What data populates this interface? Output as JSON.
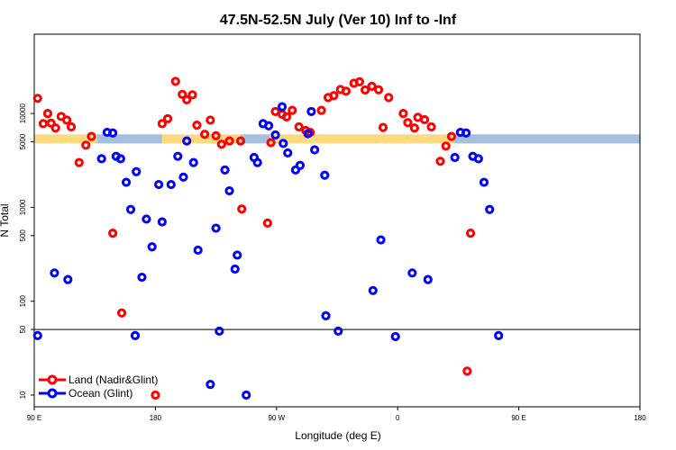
{
  "chart_data": {
    "type": "scatter",
    "title": "47.5N-52.5N July (Ver 10)   Inf to -Inf",
    "xlabel": "Longitude (deg E)",
    "ylabel": "N Total",
    "y_scale": "log",
    "xlim": [
      -90,
      180
    ],
    "x_tick_positions": [
      -90,
      -36,
      18,
      72,
      126,
      180
    ],
    "x_tick_labels": [
      "90 E",
      "180",
      "90 W",
      "0",
      "90 E",
      "180"
    ],
    "x_note": "x values are degrees east of the 0 meridian, continuing past 180 (the axis covers 90 E, wrapping through 180 and the western hemisphere, back to 180)",
    "ylim": [
      7.5,
      70000
    ],
    "y_ticks": [
      10,
      50,
      100,
      500,
      1000,
      5000,
      10000
    ],
    "y_tick_labels": [
      "10",
      "50",
      "100",
      "500",
      "1000",
      "5000",
      "10000"
    ],
    "reference_line": 50,
    "band": {
      "low": 4800,
      "high": 6000,
      "land_color": "#ffd980",
      "ocean_color": "#a4bfe0"
    },
    "legend": {
      "position": "bottom-left"
    },
    "series": [
      {
        "name": "Land (Nadir&Glint)",
        "color": "#ff0000",
        "points": [
          [
            -88.5,
            14500
          ],
          [
            -86,
            7800
          ],
          [
            -84,
            10000
          ],
          [
            -82.5,
            7900
          ],
          [
            -80.5,
            7000
          ],
          [
            -78,
            9300
          ],
          [
            -75.5,
            8500
          ],
          [
            -73.5,
            7200
          ],
          [
            -70,
            3000
          ],
          [
            -67,
            4600
          ],
          [
            -64.5,
            5700
          ],
          [
            -55,
            530
          ],
          [
            -51,
            75
          ],
          [
            -36,
            10
          ],
          [
            -33,
            7800
          ],
          [
            -30.5,
            8800
          ],
          [
            -27,
            22000
          ],
          [
            -24,
            16000
          ],
          [
            -22,
            14000
          ],
          [
            -19.5,
            15800
          ],
          [
            -17.5,
            7500
          ],
          [
            -14,
            6000
          ],
          [
            -11.5,
            8500
          ],
          [
            -9,
            5800
          ],
          [
            -6.5,
            4700
          ],
          [
            -3,
            5100
          ],
          [
            2,
            5100
          ],
          [
            2.5,
            960
          ],
          [
            14,
            680
          ],
          [
            15.5,
            4900
          ],
          [
            17.5,
            10500
          ],
          [
            20.5,
            9800
          ],
          [
            22.5,
            9200
          ],
          [
            25,
            10800
          ],
          [
            28,
            7200
          ],
          [
            31,
            6600
          ],
          [
            33,
            6300
          ],
          [
            38,
            10800
          ],
          [
            41,
            14800
          ],
          [
            43.5,
            15500
          ],
          [
            46.5,
            18000
          ],
          [
            49,
            17300
          ],
          [
            52.5,
            21000
          ],
          [
            55,
            21800
          ],
          [
            57.5,
            17800
          ],
          [
            60.5,
            19500
          ],
          [
            63.5,
            17900
          ],
          [
            65.5,
            7100
          ],
          [
            68,
            14800
          ],
          [
            74.5,
            10000
          ],
          [
            76.5,
            8000
          ],
          [
            79.5,
            7000
          ],
          [
            81,
            9100
          ],
          [
            84,
            8600
          ],
          [
            87,
            7200
          ],
          [
            91,
            3100
          ],
          [
            93.5,
            4500
          ],
          [
            96,
            5700
          ],
          [
            103,
            18
          ],
          [
            104.5,
            530
          ]
        ]
      },
      {
        "name": "Ocean (Glint)",
        "color": "#0000ff",
        "points": [
          [
            -88.5,
            43
          ],
          [
            -81,
            200
          ],
          [
            -75,
            170
          ],
          [
            -60,
            3300
          ],
          [
            -57.5,
            6300
          ],
          [
            -55,
            6200
          ],
          [
            -53.5,
            3500
          ],
          [
            -51.5,
            3300
          ],
          [
            -49,
            1850
          ],
          [
            -47,
            950
          ],
          [
            -45,
            43
          ],
          [
            -44.5,
            2400
          ],
          [
            -42,
            180
          ],
          [
            -40,
            750
          ],
          [
            -37.5,
            380
          ],
          [
            -34.5,
            1750
          ],
          [
            -33,
            700
          ],
          [
            -29,
            1750
          ],
          [
            -26,
            3500
          ],
          [
            -23.5,
            2100
          ],
          [
            -22,
            5100
          ],
          [
            -19,
            3000
          ],
          [
            -17,
            350
          ],
          [
            -11.5,
            13
          ],
          [
            -9,
            600
          ],
          [
            -7.5,
            48
          ],
          [
            -5,
            2500
          ],
          [
            -3,
            1500
          ],
          [
            -0.5,
            220
          ],
          [
            0.5,
            310
          ],
          [
            4.5,
            10
          ],
          [
            8,
            3400
          ],
          [
            9.5,
            3000
          ],
          [
            12,
            7800
          ],
          [
            14.5,
            7400
          ],
          [
            17.5,
            5900
          ],
          [
            20.5,
            11800
          ],
          [
            21,
            4800
          ],
          [
            23,
            3800
          ],
          [
            26.5,
            2500
          ],
          [
            28.5,
            2800
          ],
          [
            32,
            6100
          ],
          [
            33.5,
            10500
          ],
          [
            35,
            4100
          ],
          [
            39.5,
            2200
          ],
          [
            40,
            70
          ],
          [
            45.5,
            48
          ],
          [
            61,
            130
          ],
          [
            64.5,
            450
          ],
          [
            71,
            42
          ],
          [
            78.5,
            200
          ],
          [
            85.5,
            170
          ],
          [
            97.5,
            3400
          ],
          [
            100,
            6300
          ],
          [
            102.5,
            6200
          ],
          [
            105.5,
            3500
          ],
          [
            108,
            3300
          ],
          [
            110.5,
            1850
          ],
          [
            113,
            950
          ],
          [
            117,
            43
          ]
        ]
      }
    ]
  }
}
